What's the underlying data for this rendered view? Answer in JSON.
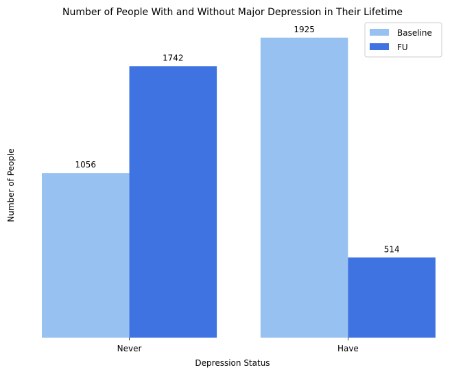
{
  "chart_data": {
    "type": "bar",
    "title": "Number of People With and Without Major Depression in Their Lifetime",
    "xlabel": "Depression Status",
    "ylabel": "Number of People",
    "categories": [
      "Never",
      "Have"
    ],
    "series": [
      {
        "name": "Baseline",
        "values": [
          1056,
          1925
        ],
        "color": "#97c1f0"
      },
      {
        "name": "FU",
        "values": [
          1742,
          514
        ],
        "color": "#4073e2"
      }
    ],
    "ylim": [
      0,
      2021
    ],
    "grid": false,
    "legend_position": "top-right",
    "y_ticks_visible": false
  }
}
